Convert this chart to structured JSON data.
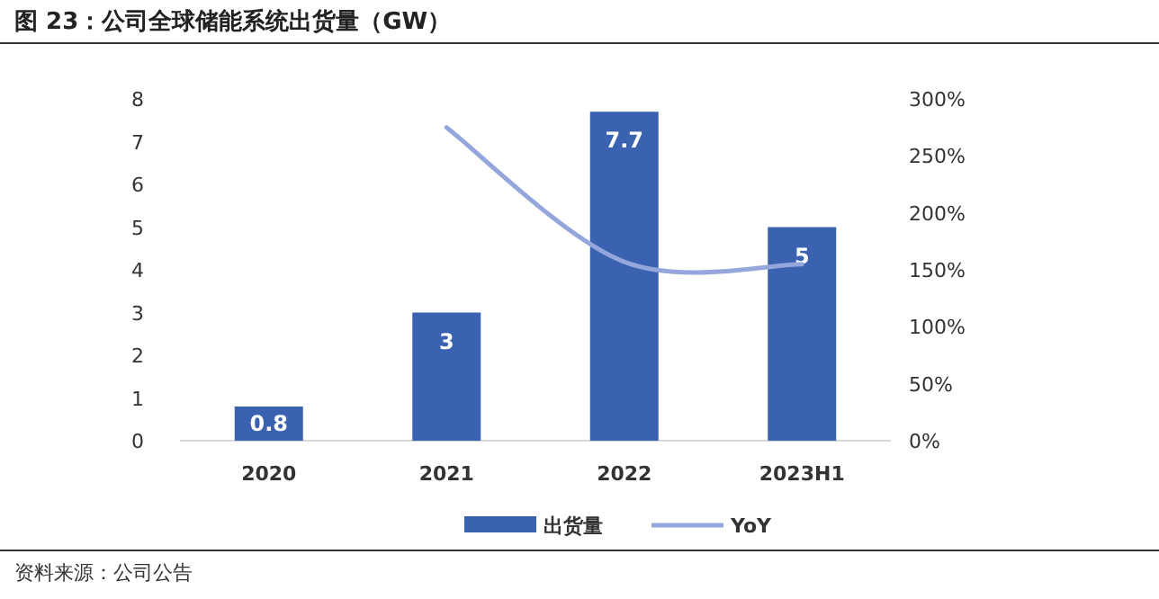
{
  "chart_data": {
    "type": "bar",
    "title": "图 23：公司全球储能系统出货量（GW）",
    "categories": [
      "2020",
      "2021",
      "2022",
      "2023H1"
    ],
    "series": [
      {
        "name": "出货量",
        "color": "#3a62b0",
        "values": [
          0.8,
          3,
          7.7,
          5
        ],
        "value_labels": [
          "0.8",
          "3",
          "7.7",
          "5"
        ]
      },
      {
        "name": "YoY",
        "type": "line",
        "axis": "y2",
        "color": "#94a6dc",
        "values": [
          null,
          275,
          157,
          155
        ]
      }
    ],
    "ylim": [
      0,
      8
    ],
    "yticks": [
      0,
      1,
      2,
      3,
      4,
      5,
      6,
      7,
      8
    ],
    "y2lim": [
      0,
      300
    ],
    "y2ticks": [
      {
        "value": 0,
        "label": "0%"
      },
      {
        "value": 50,
        "label": "50%"
      },
      {
        "value": 100,
        "label": "100%"
      },
      {
        "value": 150,
        "label": "150%"
      },
      {
        "value": 200,
        "label": "200%"
      },
      {
        "value": 250,
        "label": "250%"
      },
      {
        "value": 300,
        "label": "300%"
      }
    ],
    "legend": "bottom",
    "annotations": [
      "资料来源：公司公告"
    ]
  }
}
